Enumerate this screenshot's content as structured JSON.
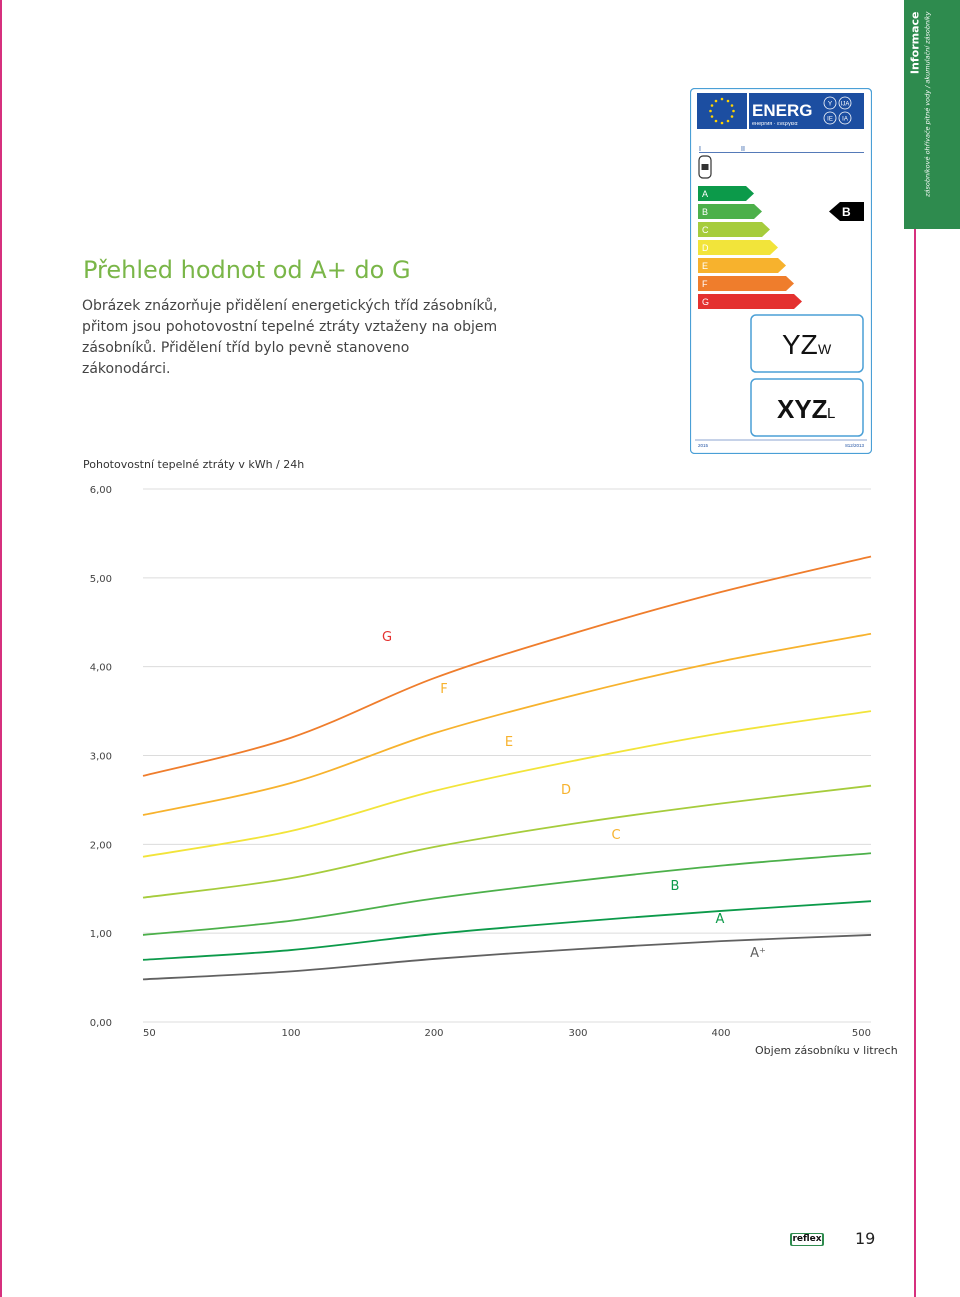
{
  "sidebar_tab": {
    "title": "Informace",
    "subtitle": "zásobníkové ohřívače pitné vody / akumulační zásobníky"
  },
  "heading": "Přehled hodnot od A+ do G",
  "intro_lines": [
    "Obrázek znázorňuje přidělení energetických tříd zásobníků,",
    "přitom jsou pohotovostní tepelné ztráty vztaženy na objem",
    "zásobníků. Přidělení tříd bylo pevně stanoveno zákonodárci."
  ],
  "energy_label": {
    "brand": "ENERG",
    "brand_sub": "енергия · ενεργεια",
    "badges": [
      "Y",
      "IJA",
      "IE",
      "IA"
    ],
    "marker_left": "I",
    "marker_right": "II",
    "scale": [
      {
        "letter": "A",
        "color": "#0c9a4a"
      },
      {
        "letter": "B",
        "color": "#4cb04a"
      },
      {
        "letter": "C",
        "color": "#a6cc3c"
      },
      {
        "letter": "D",
        "color": "#f2e43a"
      },
      {
        "letter": "E",
        "color": "#f7b22d"
      },
      {
        "letter": "F",
        "color": "#ef7d2c"
      },
      {
        "letter": "G",
        "color": "#e4312f"
      }
    ],
    "current_class": "B",
    "loss_value": "YZ",
    "loss_unit": "W",
    "volume_value": "XYZ",
    "volume_unit": "L",
    "footer_left": "2015",
    "footer_right": "812/2013"
  },
  "chart_data": {
    "type": "line",
    "ylabel": "Pohotovostní tepelné ztráty v kWh / 24h",
    "xlabel": "Objem zásobníku v litrech",
    "x_ticks": [
      "50",
      "100",
      "200",
      "300",
      "400",
      "500"
    ],
    "y_ticks": [
      "0,00",
      "1,00",
      "2,00",
      "3,00",
      "4,00",
      "5,00",
      "6,00"
    ],
    "ylim": [
      0,
      6
    ],
    "grid": true,
    "x": [
      50,
      100,
      200,
      300,
      400,
      500
    ],
    "series": [
      {
        "name": "A+",
        "color": "#616161",
        "values": [
          0.48,
          0.57,
          0.71,
          0.82,
          0.91,
          0.98
        ]
      },
      {
        "name": "A",
        "color": "#0c9a4a",
        "values": [
          0.7,
          0.81,
          0.99,
          1.13,
          1.25,
          1.36
        ]
      },
      {
        "name": "B",
        "color": "#4cb04a",
        "values": [
          0.98,
          1.14,
          1.39,
          1.59,
          1.76,
          1.9
        ]
      },
      {
        "name": "C",
        "color": "#a6cc3c",
        "values": [
          1.4,
          1.62,
          1.97,
          2.24,
          2.46,
          2.66
        ]
      },
      {
        "name": "D",
        "color": "#f2e43a",
        "values": [
          1.86,
          2.15,
          2.6,
          2.95,
          3.25,
          3.5
        ]
      },
      {
        "name": "E",
        "color": "#f7b22d",
        "values": [
          2.33,
          2.69,
          3.25,
          3.69,
          4.06,
          4.37
        ]
      },
      {
        "name": "F",
        "color": "#ef7d2c",
        "values": [
          2.77,
          3.2,
          3.87,
          4.39,
          4.84,
          5.24
        ]
      }
    ],
    "annotations": [
      {
        "text": "G",
        "color": "#e4312f"
      },
      {
        "text": "F",
        "color": "#f7b22d"
      },
      {
        "text": "E",
        "color": "#f7b22d"
      },
      {
        "text": "D",
        "color": "#f7b22d"
      },
      {
        "text": "C",
        "color": "#f7b22d"
      },
      {
        "text": "B",
        "color": "#0c9a4a"
      },
      {
        "text": "A",
        "color": "#0c9a4a"
      },
      {
        "text": "A⁺",
        "color": "#616161"
      }
    ]
  },
  "footer": {
    "logo": "reflex",
    "page_number": "19"
  }
}
